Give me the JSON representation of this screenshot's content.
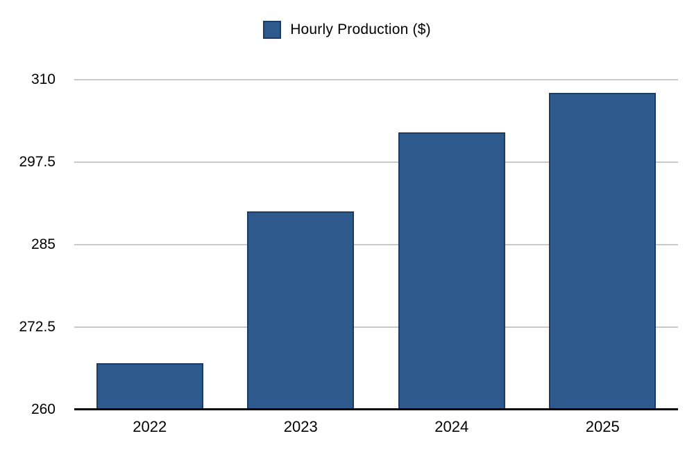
{
  "chart_data": {
    "type": "bar",
    "title": "",
    "series_name": "Hourly Production ($)",
    "categories": [
      "2022",
      "2023",
      "2024",
      "2025"
    ],
    "values": [
      267,
      290,
      302,
      308
    ],
    "xlabel": "",
    "ylabel": "",
    "ylim": [
      260,
      310
    ],
    "yticks": [
      {
        "value": 260,
        "label": "260"
      },
      {
        "value": 272.5,
        "label": "272.5"
      },
      {
        "value": 285,
        "label": "285"
      },
      {
        "value": 297.5,
        "label": "297.5"
      },
      {
        "value": 310,
        "label": "310"
      }
    ],
    "grid": "horizontal",
    "legend_position": "top-center",
    "bar_slot_fill": 0.71,
    "colors": {
      "bar_fill": "#2E598D",
      "bar_border": "#1C3B63",
      "gridline": "#C9C9C9",
      "axis_line": "#000000",
      "text": "#000000",
      "background": "#FFFFFF"
    }
  }
}
